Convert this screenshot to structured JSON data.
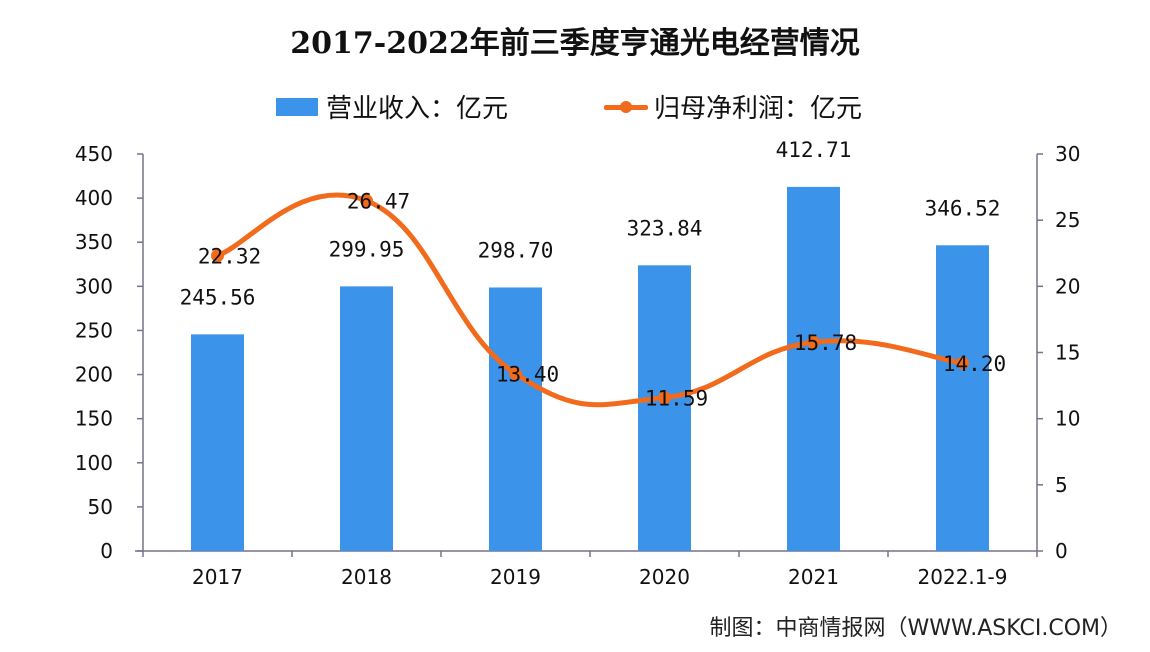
{
  "title": "2017-2022年前三季度亨通光电经营情况",
  "legend": {
    "revenue": "营业收入：亿元",
    "profit": "归母净利润：亿元"
  },
  "footer": "制图：中商情报网（WWW.ASKCI.COM）",
  "colors": {
    "bar": "#3b93ea",
    "line": "#f26b1d",
    "axis": "#7a7088",
    "text": "#111111"
  },
  "chart_data": {
    "type": "bar+line",
    "title": "2017-2022年前三季度亨通光电经营情况",
    "categories": [
      "2017",
      "2018",
      "2019",
      "2020",
      "2021",
      "2022.1-9"
    ],
    "series": [
      {
        "name": "营业收入：亿元",
        "type": "bar",
        "axis": "left",
        "values": [
          245.56,
          299.95,
          298.7,
          323.84,
          412.71,
          346.52
        ],
        "labels": [
          "245.56",
          "299.95",
          "298.70",
          "323.84",
          "412.71",
          "346.52"
        ]
      },
      {
        "name": "归母净利润：亿元",
        "type": "line",
        "axis": "right",
        "smooth": true,
        "values": [
          22.32,
          26.47,
          13.4,
          11.59,
          15.78,
          14.2
        ],
        "labels": [
          "22.32",
          "26.47",
          "13.40",
          "11.59",
          "15.78",
          "14.20"
        ]
      }
    ],
    "left_axis": {
      "ylim": [
        0,
        450
      ],
      "ticks": [
        "0",
        "50",
        "100",
        "150",
        "200",
        "250",
        "300",
        "350",
        "400",
        "450"
      ]
    },
    "right_axis": {
      "ylim": [
        0,
        30
      ],
      "ticks": [
        "0",
        "5",
        "10",
        "15",
        "20",
        "25",
        "30"
      ]
    },
    "xlabel": "",
    "ylabel": "",
    "grid": false,
    "legend_position": "top"
  }
}
